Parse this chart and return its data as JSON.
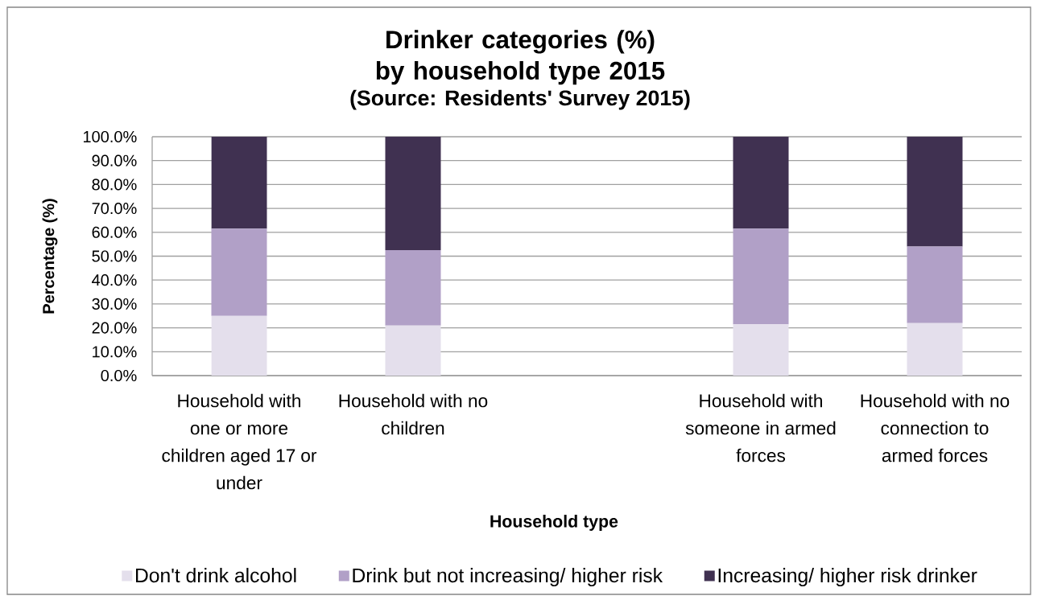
{
  "chart_data": {
    "type": "bar",
    "stacked": true,
    "title": "Drinker categories (%) by household type 2015",
    "subtitle": "(Source: Residents' Survey 2015)",
    "xlabel": "Household type",
    "ylabel": "Percentage (%)",
    "categories": [
      "Household with one or more children aged 17 or under",
      "Household with no children",
      null,
      "Household with someone in armed forces",
      "Household with no connection to armed forces"
    ],
    "series": [
      {
        "name": "Don't drink alcohol",
        "color": "#e4dfec",
        "values": [
          25,
          21,
          null,
          21.5,
          22
        ]
      },
      {
        "name": "Drink but not increasing/ higher risk",
        "color": "#b1a0c7",
        "values": [
          36.5,
          31.5,
          null,
          40,
          32
        ]
      },
      {
        "name": "Increasing/ higher risk drinker",
        "color": "#403151",
        "values": [
          38.5,
          47.5,
          null,
          38.5,
          46
        ]
      }
    ],
    "ylim": [
      0,
      100
    ],
    "yticks": [
      {
        "value": 0,
        "label": "0.0%"
      },
      {
        "value": 10,
        "label": "10.0%"
      },
      {
        "value": 20,
        "label": "20.0%"
      },
      {
        "value": 30,
        "label": "30.0%"
      },
      {
        "value": 40,
        "label": "40.0%"
      },
      {
        "value": 50,
        "label": "50.0%"
      },
      {
        "value": 60,
        "label": "60.0%"
      },
      {
        "value": 70,
        "label": "70.0%"
      },
      {
        "value": 80,
        "label": "80.0%"
      },
      {
        "value": 90,
        "label": "90.0%"
      },
      {
        "value": 100,
        "label": "100.0%"
      }
    ],
    "grid": "y",
    "legend": "bottom"
  }
}
